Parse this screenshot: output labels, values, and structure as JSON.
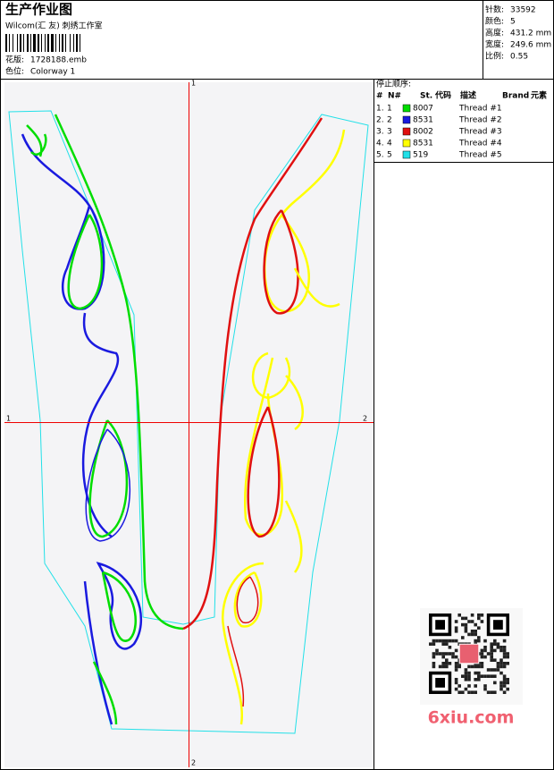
{
  "header": {
    "title": "生产作业图",
    "studio": "Wilcom(汇 友) 刺绣工作室",
    "design_label": "花版:",
    "design": "1728188.emb",
    "colorway_label": "色位:",
    "colorway": "Colorway 1"
  },
  "stats": [
    {
      "label": "针数:",
      "value": "33592"
    },
    {
      "label": "颜色:",
      "value": "5"
    },
    {
      "label": "高度:",
      "value": "431.2 mm"
    },
    {
      "label": "宽度:",
      "value": "249.6 mm"
    },
    {
      "label": "比例:",
      "value": "0.55"
    }
  ],
  "threads": {
    "title": "停止顺序:",
    "columns": [
      "#",
      "N#",
      "St.",
      "代码",
      "描述",
      "Brand",
      "元素"
    ],
    "rows": [
      {
        "stop": "1.",
        "n": "1",
        "color": "#00dd00",
        "code": "8007",
        "desc": "Thread #1"
      },
      {
        "stop": "2.",
        "n": "2",
        "color": "#1a1adf",
        "code": "8531",
        "desc": "Thread #2"
      },
      {
        "stop": "3.",
        "n": "3",
        "color": "#e01010",
        "code": "8002",
        "desc": "Thread #3"
      },
      {
        "stop": "4.",
        "n": "4",
        "color": "#ffff00",
        "code": "8531",
        "desc": "Thread #4"
      },
      {
        "stop": "5.",
        "n": "5",
        "color": "#22e0e8",
        "code": "519",
        "desc": "Thread #5"
      }
    ]
  },
  "axis_labels": {
    "top": "1",
    "bottom": "2",
    "left": "1",
    "right": "2"
  },
  "watermark": "6xiu.com"
}
